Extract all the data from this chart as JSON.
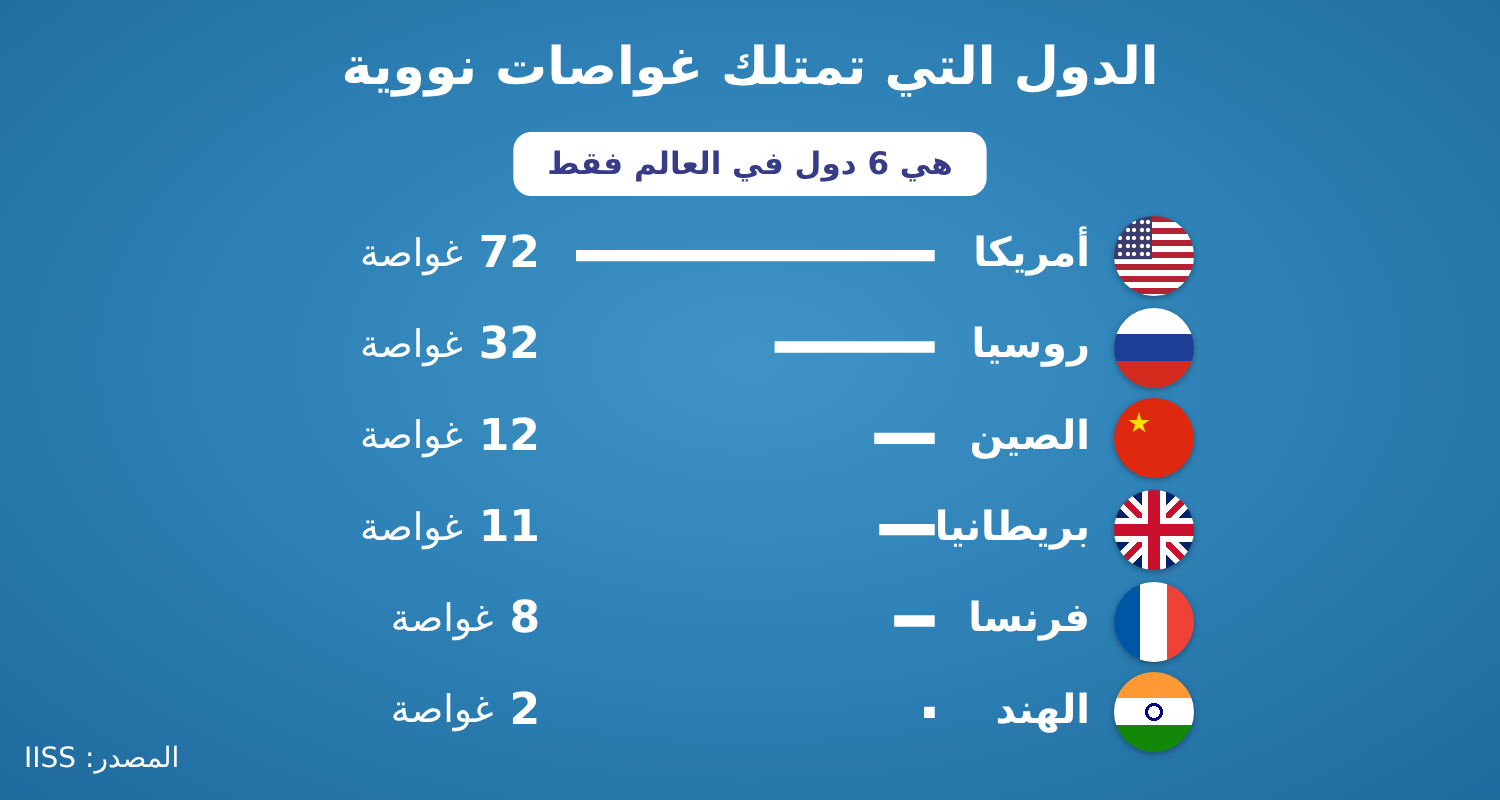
{
  "chart_data": {
    "type": "bar",
    "orientation": "horizontal",
    "title": "الدول التي تمتلك غواصات نووية",
    "subtitle": "هي 6 دول في العالم فقط",
    "categories": [
      "أمريكا",
      "روسيا",
      "الصين",
      "بريطانيا",
      "فرنسا",
      "الهند"
    ],
    "values": [
      72,
      32,
      12,
      11,
      8,
      2
    ],
    "value_labels": [
      "72 غواصة",
      "32 غواصة",
      "12 غواصة",
      "11 غواصة",
      "8 غواصة",
      "2 غواصة"
    ],
    "color": "#ffffff",
    "annotations": [
      "المصدر: IISS"
    ]
  }
}
